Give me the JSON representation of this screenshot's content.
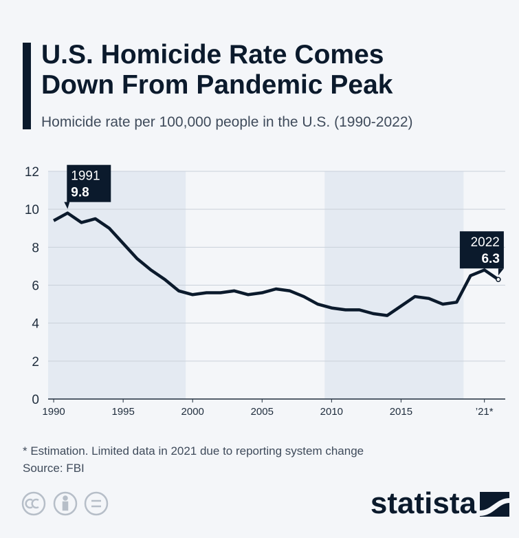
{
  "chart_data": {
    "type": "line",
    "title": "U.S. Homicide Rate Comes Down From Pandemic Peak",
    "subtitle": "Homicide rate per 100,000 people in the U.S. (1990-2022)",
    "x": [
      1990,
      1991,
      1992,
      1993,
      1994,
      1995,
      1996,
      1997,
      1998,
      1999,
      2000,
      2001,
      2002,
      2003,
      2004,
      2005,
      2006,
      2007,
      2008,
      2009,
      2010,
      2011,
      2012,
      2013,
      2014,
      2015,
      2016,
      2017,
      2018,
      2019,
      2020,
      2021,
      2022
    ],
    "values": [
      9.4,
      9.8,
      9.3,
      9.5,
      9.0,
      8.2,
      7.4,
      6.8,
      6.3,
      5.7,
      5.5,
      5.6,
      5.6,
      5.7,
      5.5,
      5.6,
      5.8,
      5.7,
      5.4,
      5.0,
      4.8,
      4.7,
      4.7,
      4.5,
      4.4,
      4.9,
      5.4,
      5.3,
      5.0,
      5.1,
      6.5,
      6.8,
      6.3
    ],
    "color": "#0b1a2c",
    "xlim": [
      1989.6,
      2022.5
    ],
    "xticks": [
      1990,
      1995,
      2000,
      2005,
      2010,
      2015,
      {
        "value": 2021,
        "label": "’21*"
      }
    ],
    "ylim": [
      0,
      12
    ],
    "yticks": [
      0,
      2,
      4,
      6,
      8,
      10,
      12
    ],
    "grid": true,
    "shaded_periods": [
      [
        1989.6,
        1999.5
      ],
      [
        2009.5,
        2019.5
      ]
    ],
    "annotations": [
      {
        "x": 1991,
        "y": 9.8
      },
      {
        "x": 2022,
        "y": 6.3
      }
    ],
    "footnote": "* Estimation. Limited data in 2021 due to reporting system change",
    "source": "Source: FBI",
    "brand": "statista"
  }
}
